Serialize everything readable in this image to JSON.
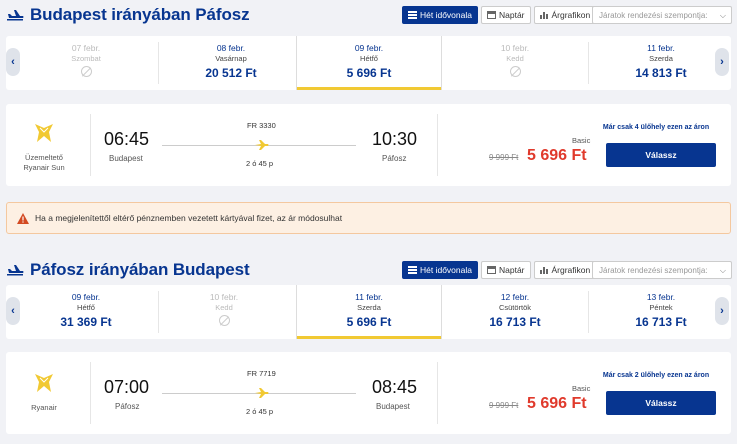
{
  "outbound": {
    "title": "Budapest irányában Páfosz",
    "view_tabs": [
      "Hét idővonala",
      "Naptár",
      "Árgrafikon"
    ],
    "sort_placeholder": "Járatok rendezési szempontja:",
    "days": [
      {
        "date": "07 febr.",
        "weekday": "Szombat",
        "price": "",
        "disabled": true
      },
      {
        "date": "08 febr.",
        "weekday": "Vasárnap",
        "price": "20 512 Ft",
        "disabled": false
      },
      {
        "date": "09 febr.",
        "weekday": "Hétfő",
        "price": "5 696 Ft",
        "disabled": false,
        "selected": true
      },
      {
        "date": "10 febr.",
        "weekday": "Kedd",
        "price": "",
        "disabled": true
      },
      {
        "date": "11 febr.",
        "weekday": "Szerda",
        "price": "14 813 Ft",
        "disabled": false
      }
    ],
    "flight": {
      "operator_lines": [
        "Üzemeltető",
        "Ryanair Sun"
      ],
      "flight_number": "FR 3330",
      "dep_time": "06:45",
      "dep_city": "Budapest",
      "arr_time": "10:30",
      "arr_city": "Páfosz",
      "duration": "2 ó 45 p",
      "fare_type": "Basic",
      "old_price": "9 999 Ft",
      "price": "5 696 Ft",
      "seats_left": "Már csak 4 ülőhely ezen az áron",
      "choose_label": "Válassz"
    }
  },
  "warning": {
    "text": "Ha a megjelenítettől eltérő pénznemben vezetett kártyával fizet, az ár módosulhat"
  },
  "inbound": {
    "title": "Páfosz irányában Budapest",
    "view_tabs": [
      "Hét idővonala",
      "Naptár",
      "Árgrafikon"
    ],
    "sort_placeholder": "Járatok rendezési szempontja:",
    "days": [
      {
        "date": "09 febr.",
        "weekday": "Hétfő",
        "price": "31 369 Ft",
        "disabled": false
      },
      {
        "date": "10 febr.",
        "weekday": "Kedd",
        "price": "",
        "disabled": true
      },
      {
        "date": "11 febr.",
        "weekday": "Szerda",
        "price": "5 696 Ft",
        "disabled": false,
        "selected": true
      },
      {
        "date": "12 febr.",
        "weekday": "Csütörtök",
        "price": "16 713 Ft",
        "disabled": false
      },
      {
        "date": "13 febr.",
        "weekday": "Péntek",
        "price": "16 713 Ft",
        "disabled": false
      }
    ],
    "flight": {
      "operator_lines": [
        "Ryanair"
      ],
      "flight_number": "FR 7719",
      "dep_time": "07:00",
      "dep_city": "Páfosz",
      "arr_time": "08:45",
      "arr_city": "Budapest",
      "duration": "2 ó 45 p",
      "fare_type": "Basic",
      "old_price": "9 999 Ft",
      "price": "5 696 Ft",
      "seats_left": "Már csak 2 ülőhely ezen az áron",
      "choose_label": "Válassz"
    }
  },
  "colors": {
    "brand": "#073590",
    "price": "#e03a2c",
    "accent": "#f1c933"
  },
  "icons": [
    "plane-icon",
    "list-icon",
    "calendar-icon",
    "bar-chart-icon",
    "chevron-left-icon",
    "chevron-right-icon",
    "no-flight-icon",
    "ryanair-harp-logo",
    "warning-icon"
  ]
}
